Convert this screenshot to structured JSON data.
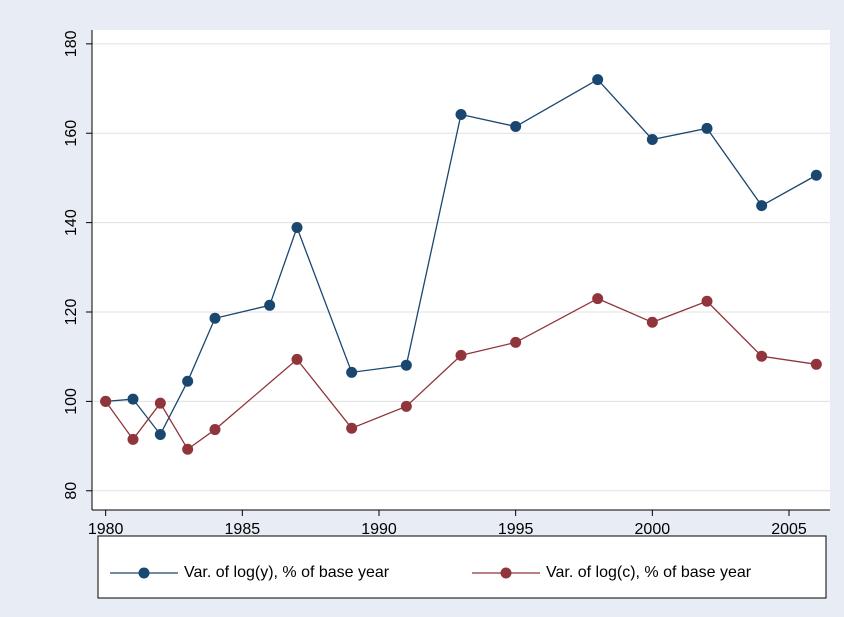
{
  "chart_data": {
    "type": "line",
    "series": [
      {
        "name": "Var. of log(y), % of base year",
        "color": "#1a476f",
        "x": [
          1980,
          1981,
          1982,
          1983,
          1984,
          1986,
          1987,
          1989,
          1991,
          1993,
          1995,
          1998,
          2000,
          2002,
          2004,
          2006
        ],
        "values": [
          100,
          100.5,
          92.6,
          104.5,
          118.6,
          121.5,
          138.9,
          106.5,
          108.1,
          164.2,
          161.5,
          172,
          158.6,
          161.1,
          143.8,
          150.6
        ]
      },
      {
        "name": "Var. of log(c), % of base year",
        "color": "#90353b",
        "x": [
          1980,
          1981,
          1982,
          1983,
          1984,
          1987,
          1989,
          1991,
          1993,
          1995,
          1998,
          2000,
          2002,
          2004,
          2006
        ],
        "values": [
          100,
          91.5,
          99.6,
          89.3,
          93.7,
          109.4,
          94,
          98.9,
          110.3,
          113.2,
          123,
          117.7,
          122.4,
          110.1,
          108.3
        ]
      }
    ],
    "xlim": [
      1979.5,
      2006.5
    ],
    "xticks": [
      1980,
      1985,
      1990,
      1995,
      2000,
      2005
    ],
    "ylim": [
      75.7,
      183.1
    ],
    "yticks": [
      80,
      100,
      120,
      140,
      160,
      180
    ],
    "grid": true
  }
}
